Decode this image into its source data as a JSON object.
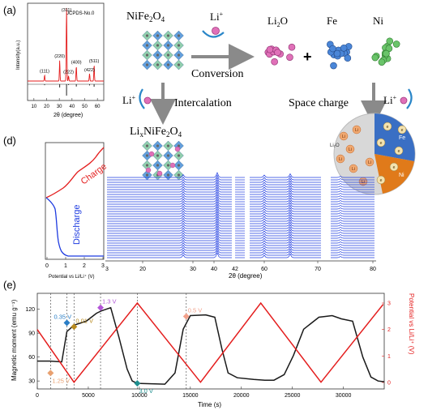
{
  "panel_a": {
    "label": "(a)",
    "xrd": {
      "card": "JCPDS-No.0",
      "ylabel": "Intensity(a.u.)",
      "xlabel": "2θ (degree)",
      "xticks": [
        "10",
        "20",
        "30",
        "40",
        "50",
        "60"
      ],
      "peaks": [
        {
          "label": "(111)",
          "two_theta": 18.4,
          "intensity": 0.08
        },
        {
          "label": "(220)",
          "two_theta": 30.3,
          "intensity": 0.28
        },
        {
          "label": "(311)",
          "two_theta": 35.7,
          "intensity": 1.0
        },
        {
          "label": "(222)",
          "two_theta": 37.3,
          "intensity": 0.07
        },
        {
          "label": "(400)",
          "two_theta": 43.4,
          "intensity": 0.2
        },
        {
          "label": "(422)",
          "two_theta": 53.8,
          "intensity": 0.1
        },
        {
          "label": "(511)",
          "two_theta": 57.4,
          "intensity": 0.22
        }
      ]
    },
    "pristine": {
      "formula_main": "NiFe",
      "sub1": "2",
      "o": "O",
      "sub2": "4"
    },
    "li_plus": "Li",
    "li_sup": "+",
    "conversion": "Conversion",
    "intercalation": "Intercalation",
    "li2o": {
      "main": "Li",
      "sub": "2",
      "o": "O"
    },
    "plus_sign": "+",
    "fe": "Fe",
    "ni": "Ni",
    "space_charge": "Space charge",
    "lixnife2o4": {
      "li": "Li",
      "x": "x",
      "nife": "NiFe",
      "sub1": "2",
      "o": "O",
      "sub2": "4"
    },
    "circle_labels": {
      "li2o": "Li₂O",
      "fe": "Fe",
      "ni": "Ni",
      "li": "Li",
      "e": "e"
    }
  },
  "panel_d": {
    "label": "(d)",
    "charge": "Charge",
    "discharge": "Discharge",
    "potential_label": "Potential vs Li/Li⁺ (V)",
    "potential_ticks": [
      "0",
      "1",
      "2",
      "3"
    ],
    "two_theta_label": "2θ (degree)",
    "two_theta_ticks": [
      "20",
      "30",
      "40",
      "60",
      "70",
      "80"
    ],
    "break_ticks": [
      "42"
    ],
    "start_tick": "3"
  },
  "panel_e": {
    "label": "(e)",
    "ylabel_left": "Magnetic moment (emu g⁻¹)",
    "ylabel_right": "Potential vs Li/Li⁺ (V)",
    "xlabel": "Time (s)",
    "yticks_left": [
      "30",
      "60",
      "90",
      "120"
    ],
    "yticks_right": [
      "0",
      "1",
      "2",
      "3"
    ],
    "xticks": [
      "0",
      "5000",
      "10000",
      "15000",
      "20000",
      "25000",
      "30000"
    ],
    "colors": {
      "magnetic": "#1a1a1a",
      "potential": "#e41e1e",
      "grid": "#555555"
    },
    "annotations": [
      {
        "label": "1.25 V",
        "color": "#e8a070",
        "time": 1300,
        "moment": 40
      },
      {
        "label": "0.35 V",
        "color": "#2a7ec6",
        "time": 2900,
        "moment": 103
      },
      {
        "label": "0.01 V",
        "color": "#b88a1e",
        "time": 3600,
        "moment": 98
      },
      {
        "label": "1.3 V",
        "color": "#b355d8",
        "time": 6200,
        "moment": 122
      },
      {
        "label": "3.0 V",
        "color": "#1f8f8f",
        "time": 9800,
        "moment": 27
      },
      {
        "label": "0.5 V",
        "color": "#f2a08a",
        "time": 14600,
        "moment": 111
      }
    ],
    "chart_data": {
      "type": "line",
      "xlabel": "Time (s)",
      "ylabel": "Magnetic moment (emu g⁻¹)",
      "y2label": "Potential vs Li/Li⁺ (V)",
      "xlim": [
        0,
        34000
      ],
      "ylim": [
        20,
        140
      ],
      "y2lim": [
        0,
        3
      ],
      "series": [
        {
          "axis": "left",
          "x": [
            0,
            1200,
            2400,
            2900,
            3600,
            4800,
            5800,
            6300,
            7200,
            8000,
            8800,
            9300,
            9800,
            12500,
            13500,
            14300,
            15000,
            16500,
            17400,
            18100,
            18700,
            19600,
            21200,
            22300,
            23200,
            24200,
            25100,
            26100,
            27600,
            28900,
            29800,
            30900,
            31900,
            32700,
            33400,
            34000
          ],
          "y": [
            55,
            55,
            54,
            92,
            100,
            105,
            115,
            118,
            122,
            85,
            45,
            30,
            27,
            26,
            40,
            95,
            112,
            113,
            110,
            70,
            40,
            34,
            32,
            31,
            31,
            38,
            62,
            95,
            110,
            112,
            108,
            105,
            60,
            35,
            30,
            29
          ]
        },
        {
          "axis": "right",
          "x": [
            0,
            3600,
            9800,
            16000,
            21900,
            27800,
            33900
          ],
          "y": [
            2.0,
            0.01,
            3.0,
            0.01,
            3.0,
            0.01,
            2.95
          ]
        }
      ]
    }
  }
}
